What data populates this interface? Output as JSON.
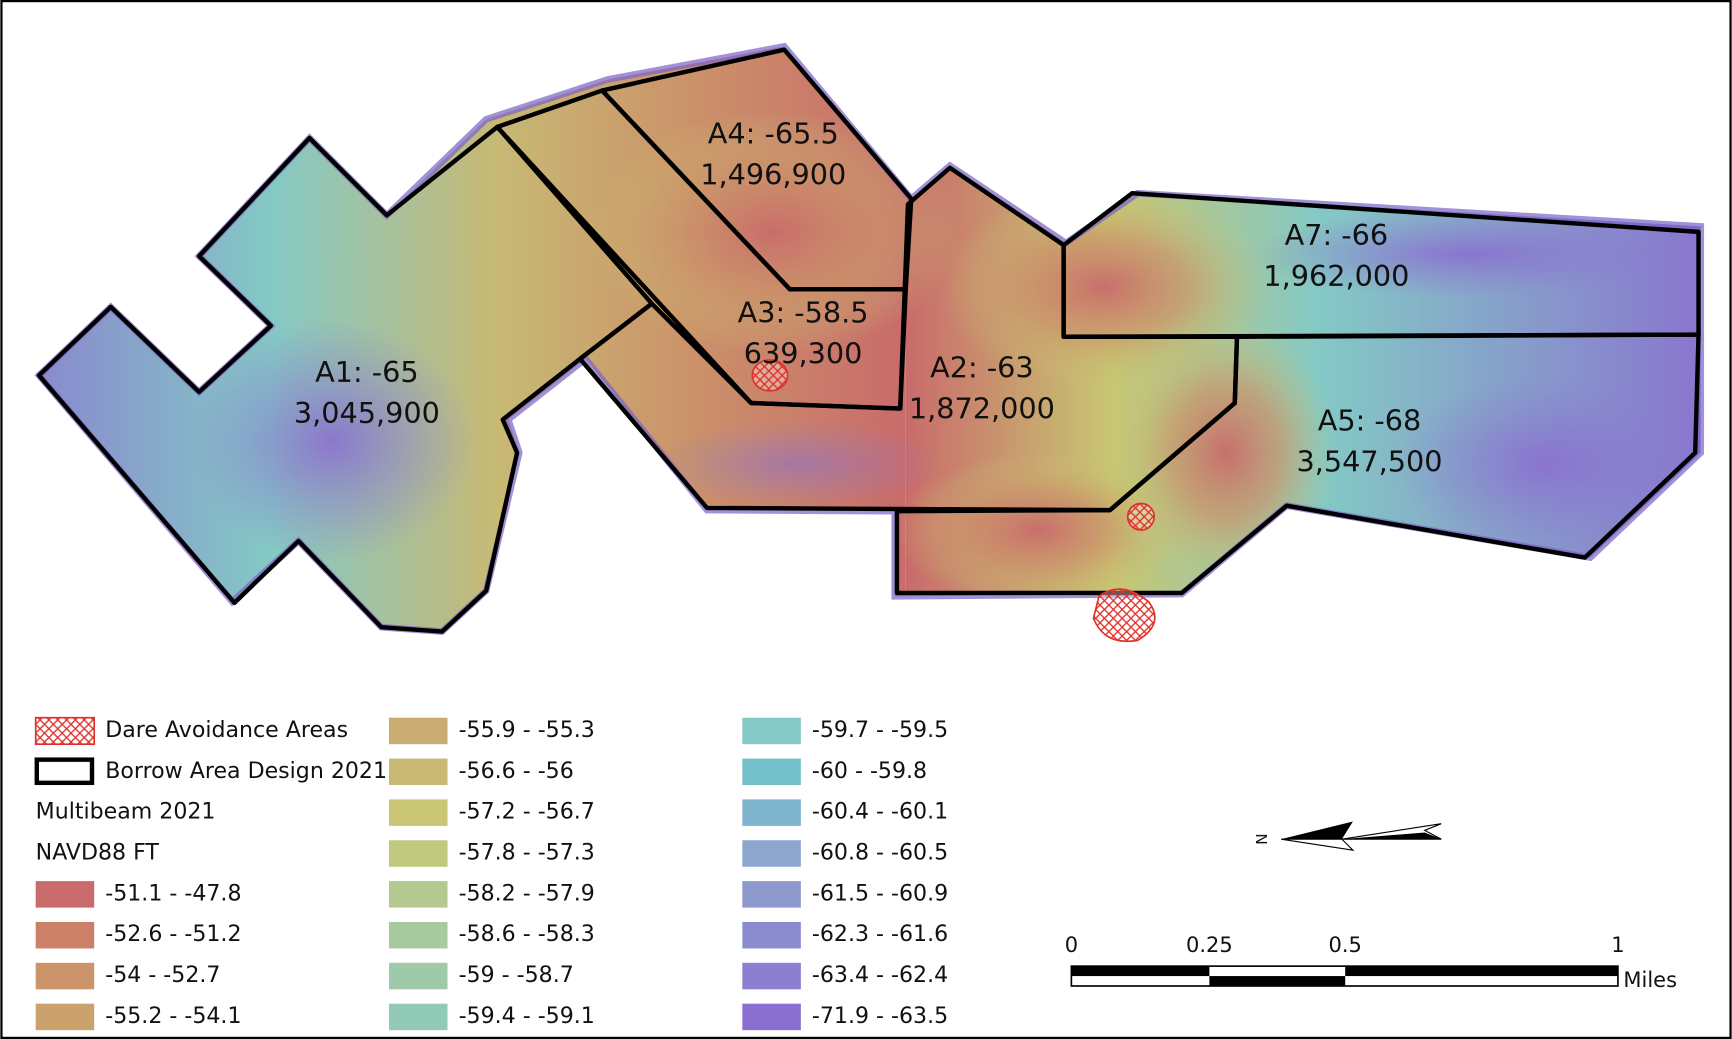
{
  "areas": [
    {
      "label": "A1: -65",
      "volume": "3,045,900"
    },
    {
      "label": "A4: -65.5",
      "volume": "1,496,900"
    },
    {
      "label": "A3: -58.5",
      "volume": "639,300"
    },
    {
      "label": "A2: -63",
      "volume": "1,872,000"
    },
    {
      "label": "A7: -66",
      "volume": "1,962,000"
    },
    {
      "label": "A5: -68",
      "volume": "3,547,500"
    }
  ],
  "legend": {
    "avoidance": "Dare Avoidance Areas",
    "borrow": "Borrow Area Design 2021",
    "survey": "Multibeam 2021",
    "datum": "NAVD88 FT",
    "classes": [
      {
        "label": "-51.1 - -47.8",
        "color": "#c96b6b"
      },
      {
        "label": "-52.6 - -51.2",
        "color": "#cb8168"
      },
      {
        "label": "-54 - -52.7",
        "color": "#cb946a"
      },
      {
        "label": "-55.2 - -54.1",
        "color": "#cba26e"
      },
      {
        "label": "-55.9 - -55.3",
        "color": "#c9ac72"
      },
      {
        "label": "-56.6 - -56",
        "color": "#c8b974"
      },
      {
        "label": "-57.2 - -56.7",
        "color": "#c8c672"
      },
      {
        "label": "-57.8 - -57.3",
        "color": "#c0c97e"
      },
      {
        "label": "-58.2 - -57.9",
        "color": "#b4c98f"
      },
      {
        "label": "-58.6 - -58.3",
        "color": "#a9c9a0"
      },
      {
        "label": "-59 - -58.7",
        "color": "#9fcaaa"
      },
      {
        "label": "-59.4 - -59.1",
        "color": "#91cab7"
      },
      {
        "label": "-59.7 - -59.5",
        "color": "#84c9c5"
      },
      {
        "label": "-60 - -59.8",
        "color": "#74c1cb"
      },
      {
        "label": "-60.4 - -60.1",
        "color": "#7eb4cd"
      },
      {
        "label": "-60.8 - -60.5",
        "color": "#8ca6cd"
      },
      {
        "label": "-61.5 - -60.9",
        "color": "#8e9acd"
      },
      {
        "label": "-62.3 - -61.6",
        "color": "#8b8cd0"
      },
      {
        "label": "-63.4 - -62.4",
        "color": "#8a7fd0"
      },
      {
        "label": "-71.9 - -63.5",
        "color": "#8a6fd0"
      }
    ]
  },
  "north": "N",
  "scale": {
    "ticks": [
      "0",
      "0.25",
      "0.5",
      "1"
    ],
    "unit": "Miles"
  }
}
